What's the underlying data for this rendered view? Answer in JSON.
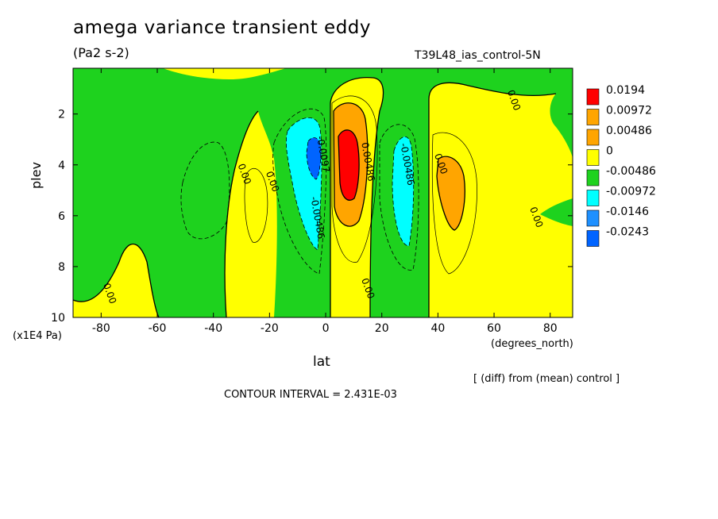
{
  "title": "amega variance transient eddy",
  "units": "(Pa2 s-2)",
  "run_name": "T39L48_ias_control-5N",
  "y_axis_label": "plev",
  "y_axis_unit": "(x1E4 Pa)",
  "x_axis_label": "lat",
  "x_axis_unit": "(degrees_north)",
  "diff_note": "[ (diff) from (mean) control ]",
  "contour_interval": "CONTOUR INTERVAL = 2.431E-03",
  "colors": {
    "red": "#ff0000",
    "orange": "#ffa500",
    "yellow": "#ffff00",
    "green": "#1ed21e",
    "cyan": "#00ffff",
    "blue": "#1e90ff",
    "darkblue": "#0064ff"
  },
  "chart_data": {
    "type": "heatmap",
    "title": "amega variance transient eddy",
    "xlabel": "lat",
    "ylabel": "plev",
    "xlim": [
      -90,
      88
    ],
    "ylim": [
      10,
      0.2
    ],
    "x_ticks": [
      -80,
      -60,
      -40,
      -20,
      0,
      20,
      40,
      60,
      80
    ],
    "y_ticks": [
      2,
      4,
      6,
      8,
      10
    ],
    "colorbar": {
      "levels": [
        "0.0194",
        "0.00972",
        "0.00486",
        "0",
        "-0.00486",
        "-0.00972",
        "-0.0146",
        "-0.0243"
      ],
      "colors": [
        "#ff0000",
        "#ffa500",
        "#ffa500",
        "#ffff00",
        "#1ed21e",
        "#00ffff",
        "#1e90ff",
        "#0064ff"
      ]
    },
    "contour_labels": [
      {
        "text": "0.00",
        "lat": -30,
        "plev": 4.4
      },
      {
        "text": "0.00",
        "lat": -20,
        "plev": 4.7
      },
      {
        "text": "0.00",
        "lat": 66,
        "plev": 1.5
      },
      {
        "text": "0.00",
        "lat": 74,
        "plev": 6.1
      },
      {
        "text": "0.00",
        "lat": -78,
        "plev": 9.1
      },
      {
        "text": "0.00",
        "lat": 14,
        "plev": 8.9
      },
      {
        "text": "0.00",
        "lat": 40,
        "plev": 4.0
      },
      {
        "text": "0.00486",
        "lat": 14,
        "plev": 3.9
      },
      {
        "text": "-0.00486",
        "lat": 28,
        "plev": 4.0
      },
      {
        "text": "-0.00486",
        "lat": -4,
        "plev": 6.1
      },
      {
        "text": "-0.0097",
        "lat": -2,
        "plev": 3.6
      }
    ],
    "features": [
      {
        "kind": "max",
        "lat": 9,
        "plev": 3.9,
        "value": 0.0194
      },
      {
        "kind": "min",
        "lat": -3,
        "plev": 3.8,
        "value": -0.0243
      },
      {
        "kind": "min",
        "lat": 28,
        "plev": 4.6,
        "value": -0.00972
      },
      {
        "kind": "max",
        "lat": 46,
        "plev": 4.5,
        "value": 0.00972
      }
    ]
  }
}
